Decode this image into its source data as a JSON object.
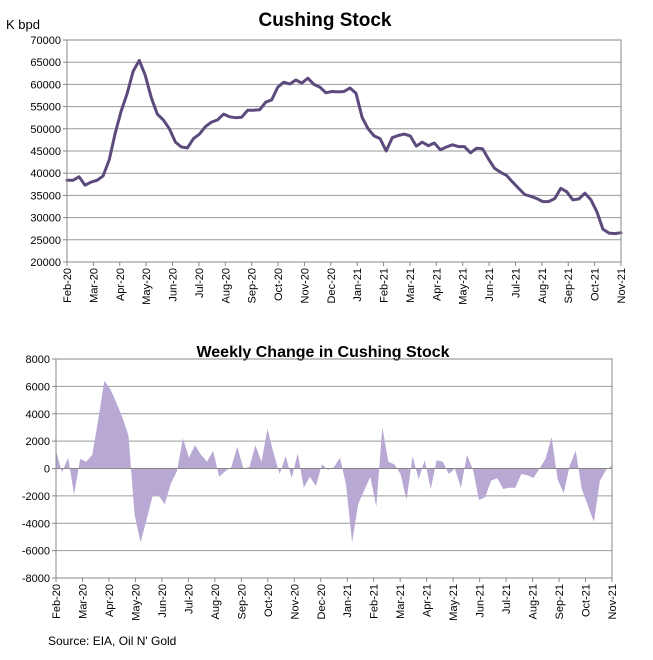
{
  "source": "Source: EIA, Oil N' Gold",
  "months": [
    "Feb-20",
    "Mar-20",
    "Apr-20",
    "May-20",
    "Jun-20",
    "Jul-20",
    "Aug-20",
    "Sep-20",
    "Oct-20",
    "Nov-20",
    "Dec-20",
    "Jan-21",
    "Feb-21",
    "Mar-21",
    "Apr-21",
    "May-21",
    "Jun-21",
    "Jul-21",
    "Aug-21",
    "Sep-21",
    "Oct-21",
    "Nov-21"
  ],
  "chart_data": [
    {
      "type": "line",
      "title": "Cushing Stock",
      "ylabel": "K bpd",
      "ylim": [
        20000,
        70000
      ],
      "yticks": [
        20000,
        25000,
        30000,
        35000,
        40000,
        45000,
        50000,
        55000,
        60000,
        65000,
        70000
      ],
      "color": "#5c4a7c",
      "values": [
        38400,
        38400,
        39200,
        37300,
        38000,
        38400,
        39400,
        43000,
        49000,
        54000,
        58000,
        63000,
        65400,
        62000,
        57000,
        53300,
        52000,
        50000,
        47000,
        45900,
        45700,
        47800,
        48800,
        50500,
        51500,
        52000,
        53300,
        52700,
        52500,
        52600,
        54200,
        54200,
        54300,
        56000,
        56500,
        59400,
        60500,
        60100,
        61000,
        60300,
        61400,
        60000,
        59400,
        58100,
        58400,
        58300,
        58400,
        59200,
        58000,
        52600,
        50000,
        48400,
        47800,
        45000,
        48000,
        48500,
        48800,
        48400,
        46100,
        47000,
        46200,
        46800,
        45300,
        45900,
        46400,
        46000,
        46000,
        44600,
        45600,
        45500,
        43200,
        41100,
        40200,
        39500,
        38000,
        36600,
        35200,
        34800,
        34300,
        33600,
        33600,
        34300,
        36600,
        35800,
        34000,
        34200,
        35500,
        34000,
        31300,
        27400,
        26500,
        26400,
        26600
      ]
    },
    {
      "type": "area",
      "title": "Weekly Change in Cushing Stock",
      "ylim": [
        -8000,
        8000
      ],
      "yticks": [
        -8000,
        -6000,
        -4000,
        -2000,
        0,
        2000,
        4000,
        6000,
        8000
      ],
      "color": "#b8a8d4",
      "values": [
        1300,
        -300,
        800,
        -1900,
        700,
        500,
        1000,
        3600,
        6400,
        5800,
        4800,
        3700,
        2400,
        -3400,
        -5400,
        -3700,
        -2000,
        -2000,
        -2600,
        -1100,
        -200,
        2200,
        800,
        1700,
        1000,
        500,
        1300,
        -600,
        -200,
        100,
        1600,
        0,
        100,
        1700,
        500,
        2900,
        1100,
        -400,
        900,
        -700,
        1100,
        -1400,
        -600,
        -1300,
        300,
        -100,
        100,
        800,
        -1200,
        -5400,
        -2600,
        -1600,
        -600,
        -2800,
        3000,
        500,
        300,
        -400,
        -2300,
        900,
        -800,
        600,
        -1500,
        600,
        500,
        -400,
        0,
        -1400,
        1000,
        -100,
        -2300,
        -2100,
        -900,
        -700,
        -1500,
        -1400,
        -1400,
        -400,
        -500,
        -700,
        0,
        700,
        2300,
        -800,
        -1800,
        200,
        1300,
        -1500,
        -2700,
        -3900,
        -900,
        -100,
        200
      ]
    }
  ]
}
